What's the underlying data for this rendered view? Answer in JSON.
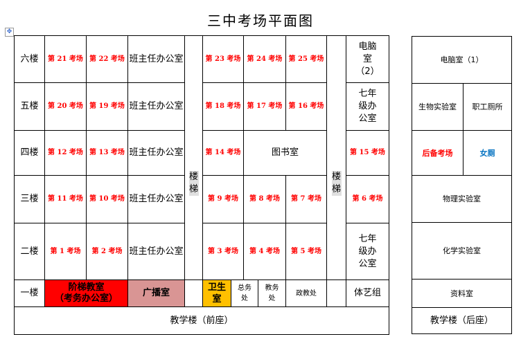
{
  "title": "三中考场平面图",
  "front": {
    "floors": [
      "六楼",
      "五楼",
      "四楼",
      "三楼",
      "二楼",
      "一楼"
    ],
    "rows": [
      [
        "第 21 考场",
        "第 22 考场",
        "班主任办公室",
        "第 23 考场",
        "第 24 考场",
        "第 25 考场",
        "电脑室（2）"
      ],
      [
        "第 20 考场",
        "第 19 考场",
        "班主任办公室",
        "第 18 考场",
        "第 17 考场",
        "第 16 考场",
        "七年级办公室"
      ],
      [
        "第 12 考场",
        "第 13 考场",
        "班主任办公室",
        "第 14 考场",
        "图书室",
        "第 15 考场"
      ],
      [
        "第 11 考场",
        "第 10 考场",
        "班主任办公室",
        "第 9 考场",
        "第 8 考场",
        "第 7 考场",
        "第 6 考场"
      ],
      [
        "第 1 考场",
        "第 2 考场",
        "班主任办公室",
        "第 3 考场",
        "第 4 考场",
        "第 5 考场",
        "七年级办公室"
      ]
    ],
    "ground": {
      "lecture": "阶梯教室",
      "lecture_sub": "（考务办公室）",
      "broadcast": "广播室",
      "clinic": "卫生室",
      "general": "总务处",
      "academic": "教务处",
      "political": "政教处",
      "sports": "体艺组"
    },
    "stairs": "楼梯",
    "footer": "教学楼（前座）"
  },
  "back": {
    "rows": [
      "电脑室（1）",
      "生物实验室",
      "职工厕所",
      "后备考场",
      "女厕",
      "物理实验室",
      "化学实验室",
      "资料室"
    ],
    "footer": "教学楼（后座）"
  },
  "colors": {
    "exam": "#ff0000",
    "lecture": "#ff0000",
    "broadcast": "#d99594",
    "clinic": "#ffc000",
    "womens": "#0070c0"
  }
}
